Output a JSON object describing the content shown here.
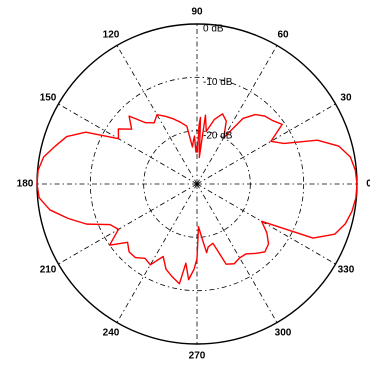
{
  "chart_data": {
    "type": "polar-line",
    "title": "",
    "theta_unit": "deg",
    "theta_ticks": [
      "90",
      "60",
      "30",
      "0",
      "330",
      "300",
      "270",
      "240",
      "210",
      "180",
      "150",
      "120"
    ],
    "theta_tick_values": [
      90,
      60,
      30,
      0,
      330,
      300,
      270,
      240,
      210,
      180,
      150,
      120
    ],
    "r_range_db": [
      -30,
      0
    ],
    "r_rings_db": [
      0,
      -10,
      -20
    ],
    "r_ring_labels": [
      "0 dB",
      "-10 dB",
      "-20 dB"
    ],
    "grid": true,
    "colors": {
      "pattern": "#ff0000",
      "grid": "#000000"
    },
    "series": [
      {
        "theta": [
          0,
          5,
          10,
          15,
          20,
          25,
          30,
          35,
          40,
          45,
          50,
          55,
          60,
          65,
          70,
          75,
          80,
          83,
          85,
          87,
          88,
          89,
          90,
          91,
          92,
          93,
          95,
          97,
          100,
          105,
          110,
          115,
          120,
          125,
          130,
          135,
          140,
          145,
          150,
          155,
          160,
          165,
          170,
          175,
          180,
          185,
          190,
          195,
          200,
          205,
          210,
          215,
          220,
          225,
          230,
          235,
          240,
          245,
          250,
          255,
          260,
          262,
          265,
          268,
          270,
          272,
          275,
          278,
          280,
          285,
          290,
          295,
          300,
          305,
          310,
          315,
          320,
          325,
          330,
          335,
          340,
          345,
          350,
          355
        ],
        "r_db": [
          0,
          -0.2,
          -0.8,
          -2.5,
          -6,
          -12,
          -14,
          -10.5,
          -11.5,
          -12,
          -13,
          -15,
          -20,
          -17,
          -16,
          -17.5,
          -20,
          -17,
          -25,
          -17.5,
          -19,
          -24,
          -24,
          -23,
          -24,
          -21,
          -22,
          -23,
          -19,
          -18,
          -17,
          -16,
          -15,
          -16,
          -15,
          -12,
          -14,
          -12,
          -13,
          -7,
          -4,
          -2.5,
          -0.8,
          -0.1,
          0,
          -0.3,
          -2,
          -5,
          -8,
          -12,
          -13,
          -10,
          -13,
          -12,
          -12,
          -13,
          -12.5,
          -15,
          -13,
          -12,
          -11,
          -15,
          -12,
          -14,
          -16,
          -22,
          -20,
          -17,
          -18,
          -18.5,
          -14,
          -13.5,
          -14,
          -14,
          -13,
          -12,
          -12.5,
          -14,
          -16,
          -6,
          -2.5,
          -1.2,
          -0.5,
          -0.1
        ]
      }
    ]
  }
}
